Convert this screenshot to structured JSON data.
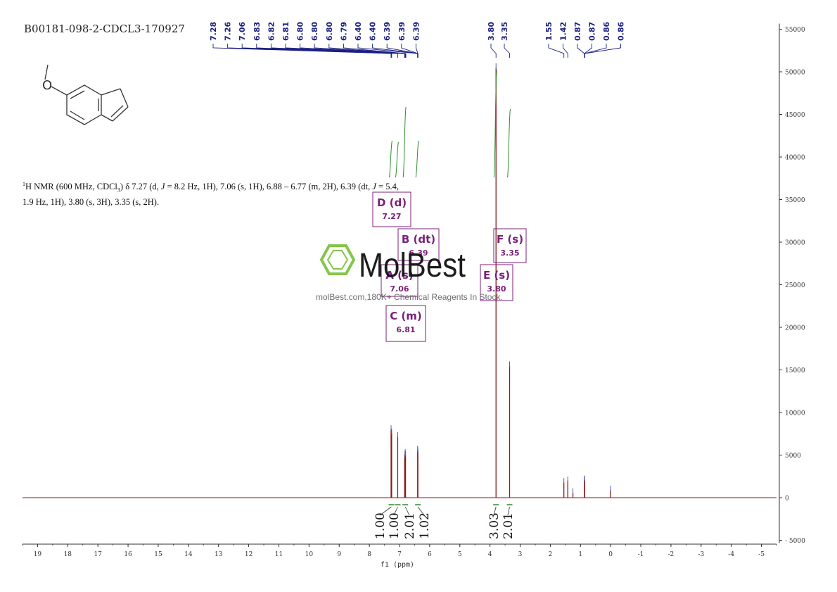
{
  "title": "B00181-098-2-CDCL3-170927",
  "nmr_text": {
    "part1": "H NMR (600 MHz, CDCl",
    "part2": ") δ 7.27 (d, ",
    "j1": "J",
    "part3": " = 8.2 Hz, 1H), 7.06 (s, 1H), 6.88 – 6.77 (m, 2H), 6.39 (dt, ",
    "j2": "J",
    "part4": " = 5.4, 1.9 Hz, 1H), 3.80 (s, 3H), 3.35 (s, 2H).",
    "sup": "1",
    "sub": "3"
  },
  "watermark": {
    "brand": "MolBest",
    "tagline": "molBest.com,180K+ Chemical Reagents In Stock."
  },
  "colors": {
    "spectrum": "#8b1a1a",
    "peak_labels": "#1a1f80",
    "integral": "#2e8b2e",
    "multiplet_box": "#7a1f7a",
    "watermark": "#7ec242"
  },
  "chart_data": {
    "type": "line",
    "xlabel": "f1 (ppm)",
    "xlim": [
      19.5,
      -5.5
    ],
    "ylim": [
      -5000,
      55000
    ],
    "x_ticks": [
      "19",
      "18",
      "17",
      "16",
      "15",
      "14",
      "13",
      "12",
      "11",
      "10",
      "9",
      "8",
      "7",
      "6",
      "5",
      "4",
      "3",
      "2",
      "1",
      "0",
      "-1",
      "-2",
      "-3",
      "-4",
      "-5"
    ],
    "y_ticks": [
      "-5000",
      "0",
      "5000",
      "10000",
      "15000",
      "20000",
      "25000",
      "30000",
      "35000",
      "40000",
      "45000",
      "50000",
      "55000"
    ],
    "spectrum_peaks": [
      {
        "ppm": 7.28,
        "height": 8000
      },
      {
        "ppm": 7.26,
        "height": 7600
      },
      {
        "ppm": 7.06,
        "height": 7200
      },
      {
        "ppm": 6.83,
        "height": 4600
      },
      {
        "ppm": 6.82,
        "height": 5000
      },
      {
        "ppm": 6.81,
        "height": 5200
      },
      {
        "ppm": 6.8,
        "height": 5000
      },
      {
        "ppm": 6.4,
        "height": 5600
      },
      {
        "ppm": 6.39,
        "height": 5400
      },
      {
        "ppm": 3.8,
        "height": 50500
      },
      {
        "ppm": 3.35,
        "height": 15500
      },
      {
        "ppm": 1.55,
        "height": 1800
      },
      {
        "ppm": 1.42,
        "height": 2000
      },
      {
        "ppm": 1.25,
        "height": 600
      },
      {
        "ppm": 0.87,
        "height": 2000
      },
      {
        "ppm": 0.86,
        "height": 2100
      },
      {
        "ppm": 0.0,
        "height": 900
      }
    ],
    "peak_labels": [
      "7.28",
      "7.26",
      "7.06",
      "6.83",
      "6.82",
      "6.81",
      "6.80",
      "6.80",
      "6.80",
      "6.79",
      "6.40",
      "6.40",
      "6.39",
      "6.39",
      "6.39",
      "3.80",
      "3.35",
      "1.55",
      "1.42",
      "0.87",
      "0.87",
      "0.86",
      "0.86"
    ],
    "integrals": [
      {
        "label": "1.00",
        "ppm": 7.27
      },
      {
        "label": "1.00",
        "ppm": 7.06
      },
      {
        "label": "2.01",
        "ppm": 6.81
      },
      {
        "label": "1.02",
        "ppm": 6.39
      },
      {
        "label": "3.03",
        "ppm": 3.8
      },
      {
        "label": "2.01",
        "ppm": 3.35
      }
    ],
    "multiplets": [
      {
        "id": "D",
        "mult": "d",
        "shift": "7.27"
      },
      {
        "id": "B",
        "mult": "dt",
        "shift": "6.39"
      },
      {
        "id": "A",
        "mult": "s",
        "shift": "7.06"
      },
      {
        "id": "C",
        "mult": "m",
        "shift": "6.81"
      },
      {
        "id": "E",
        "mult": "s",
        "shift": "3.80"
      },
      {
        "id": "F",
        "mult": "s",
        "shift": "3.35"
      }
    ]
  }
}
